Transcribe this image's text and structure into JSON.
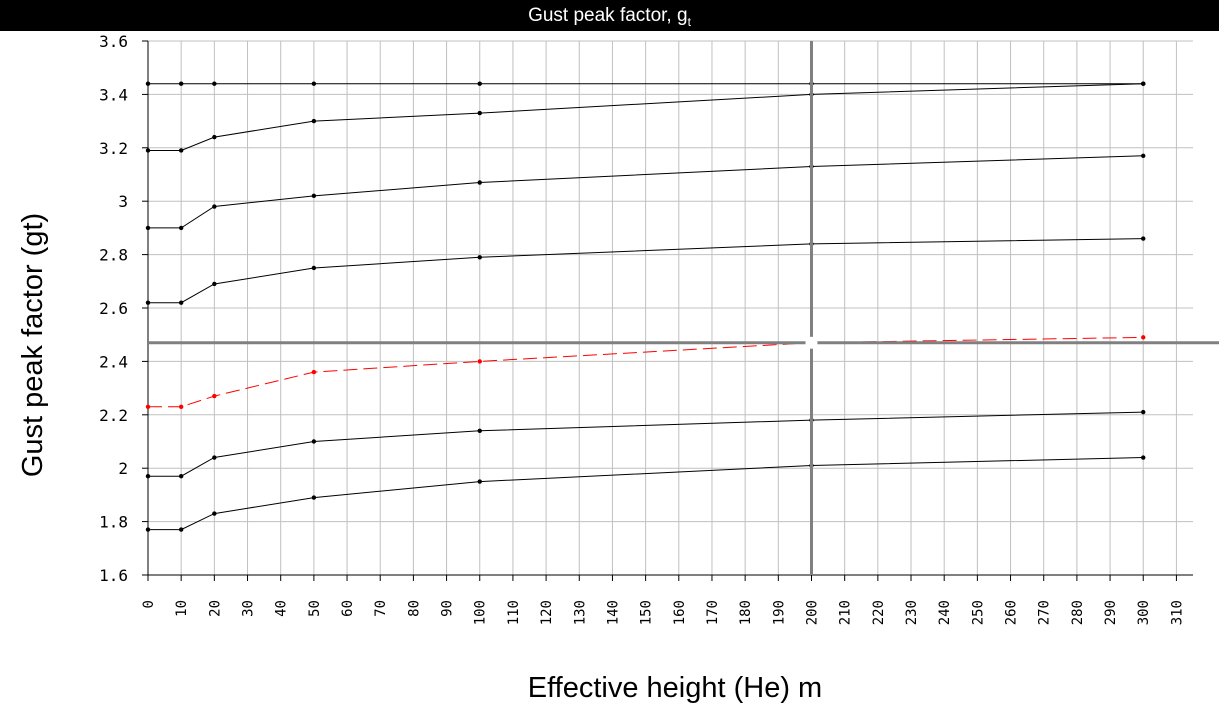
{
  "header": {
    "title_main": "Gust peak factor, g",
    "title_sub": "t"
  },
  "chart_data": {
    "type": "line",
    "title": "Gust peak factor, gt",
    "xlabel": "Effective height  (He) m",
    "ylabel": "Gust peak factor  (gt)",
    "xlim": [
      0,
      315
    ],
    "ylim": [
      1.6,
      3.6
    ],
    "x_ticks": [
      0,
      10,
      20,
      30,
      40,
      50,
      60,
      70,
      80,
      90,
      100,
      110,
      120,
      130,
      140,
      150,
      160,
      170,
      180,
      190,
      200,
      210,
      220,
      230,
      240,
      250,
      260,
      270,
      280,
      290,
      300,
      310
    ],
    "y_ticks": [
      1.6,
      1.8,
      2,
      2.2,
      2.4,
      2.6,
      2.8,
      3,
      3.2,
      3.4,
      3.6
    ],
    "y_tick_labels": [
      "1.6",
      "1.8",
      "2",
      "2.2",
      "2.4",
      "2.6",
      "2.8",
      "3",
      "3.2",
      "3.4",
      "3.6"
    ],
    "grid": true,
    "x": [
      0,
      10,
      20,
      50,
      100,
      200,
      300
    ],
    "series": [
      {
        "values": [
          3.44,
          3.44,
          3.44,
          3.44,
          3.44,
          3.44,
          3.44
        ],
        "color": "#000000",
        "style": "solid"
      },
      {
        "values": [
          3.19,
          3.19,
          3.24,
          3.3,
          3.33,
          3.4,
          3.44
        ],
        "color": "#000000",
        "style": "solid"
      },
      {
        "values": [
          2.9,
          2.9,
          2.98,
          3.02,
          3.07,
          3.13,
          3.17
        ],
        "color": "#000000",
        "style": "solid"
      },
      {
        "values": [
          2.62,
          2.62,
          2.69,
          2.75,
          2.79,
          2.84,
          2.86
        ],
        "color": "#000000",
        "style": "solid"
      },
      {
        "values": [
          2.23,
          2.23,
          2.27,
          2.36,
          2.4,
          2.47,
          2.49
        ],
        "color": "#ff0000",
        "style": "dashed",
        "highlighted": true
      },
      {
        "values": [
          1.97,
          1.97,
          2.04,
          2.1,
          2.14,
          2.18,
          2.21
        ],
        "color": "#000000",
        "style": "solid"
      },
      {
        "values": [
          1.77,
          1.77,
          1.83,
          1.89,
          1.95,
          2.01,
          2.04
        ],
        "color": "#000000",
        "style": "solid"
      }
    ],
    "crosshair": {
      "x": 200,
      "y": 2.47,
      "color": "#808080"
    },
    "colors": {
      "grid": "#c0c0c0",
      "axis": "#000000",
      "highlight": "#ff0000",
      "crosshair": "#808080"
    }
  }
}
